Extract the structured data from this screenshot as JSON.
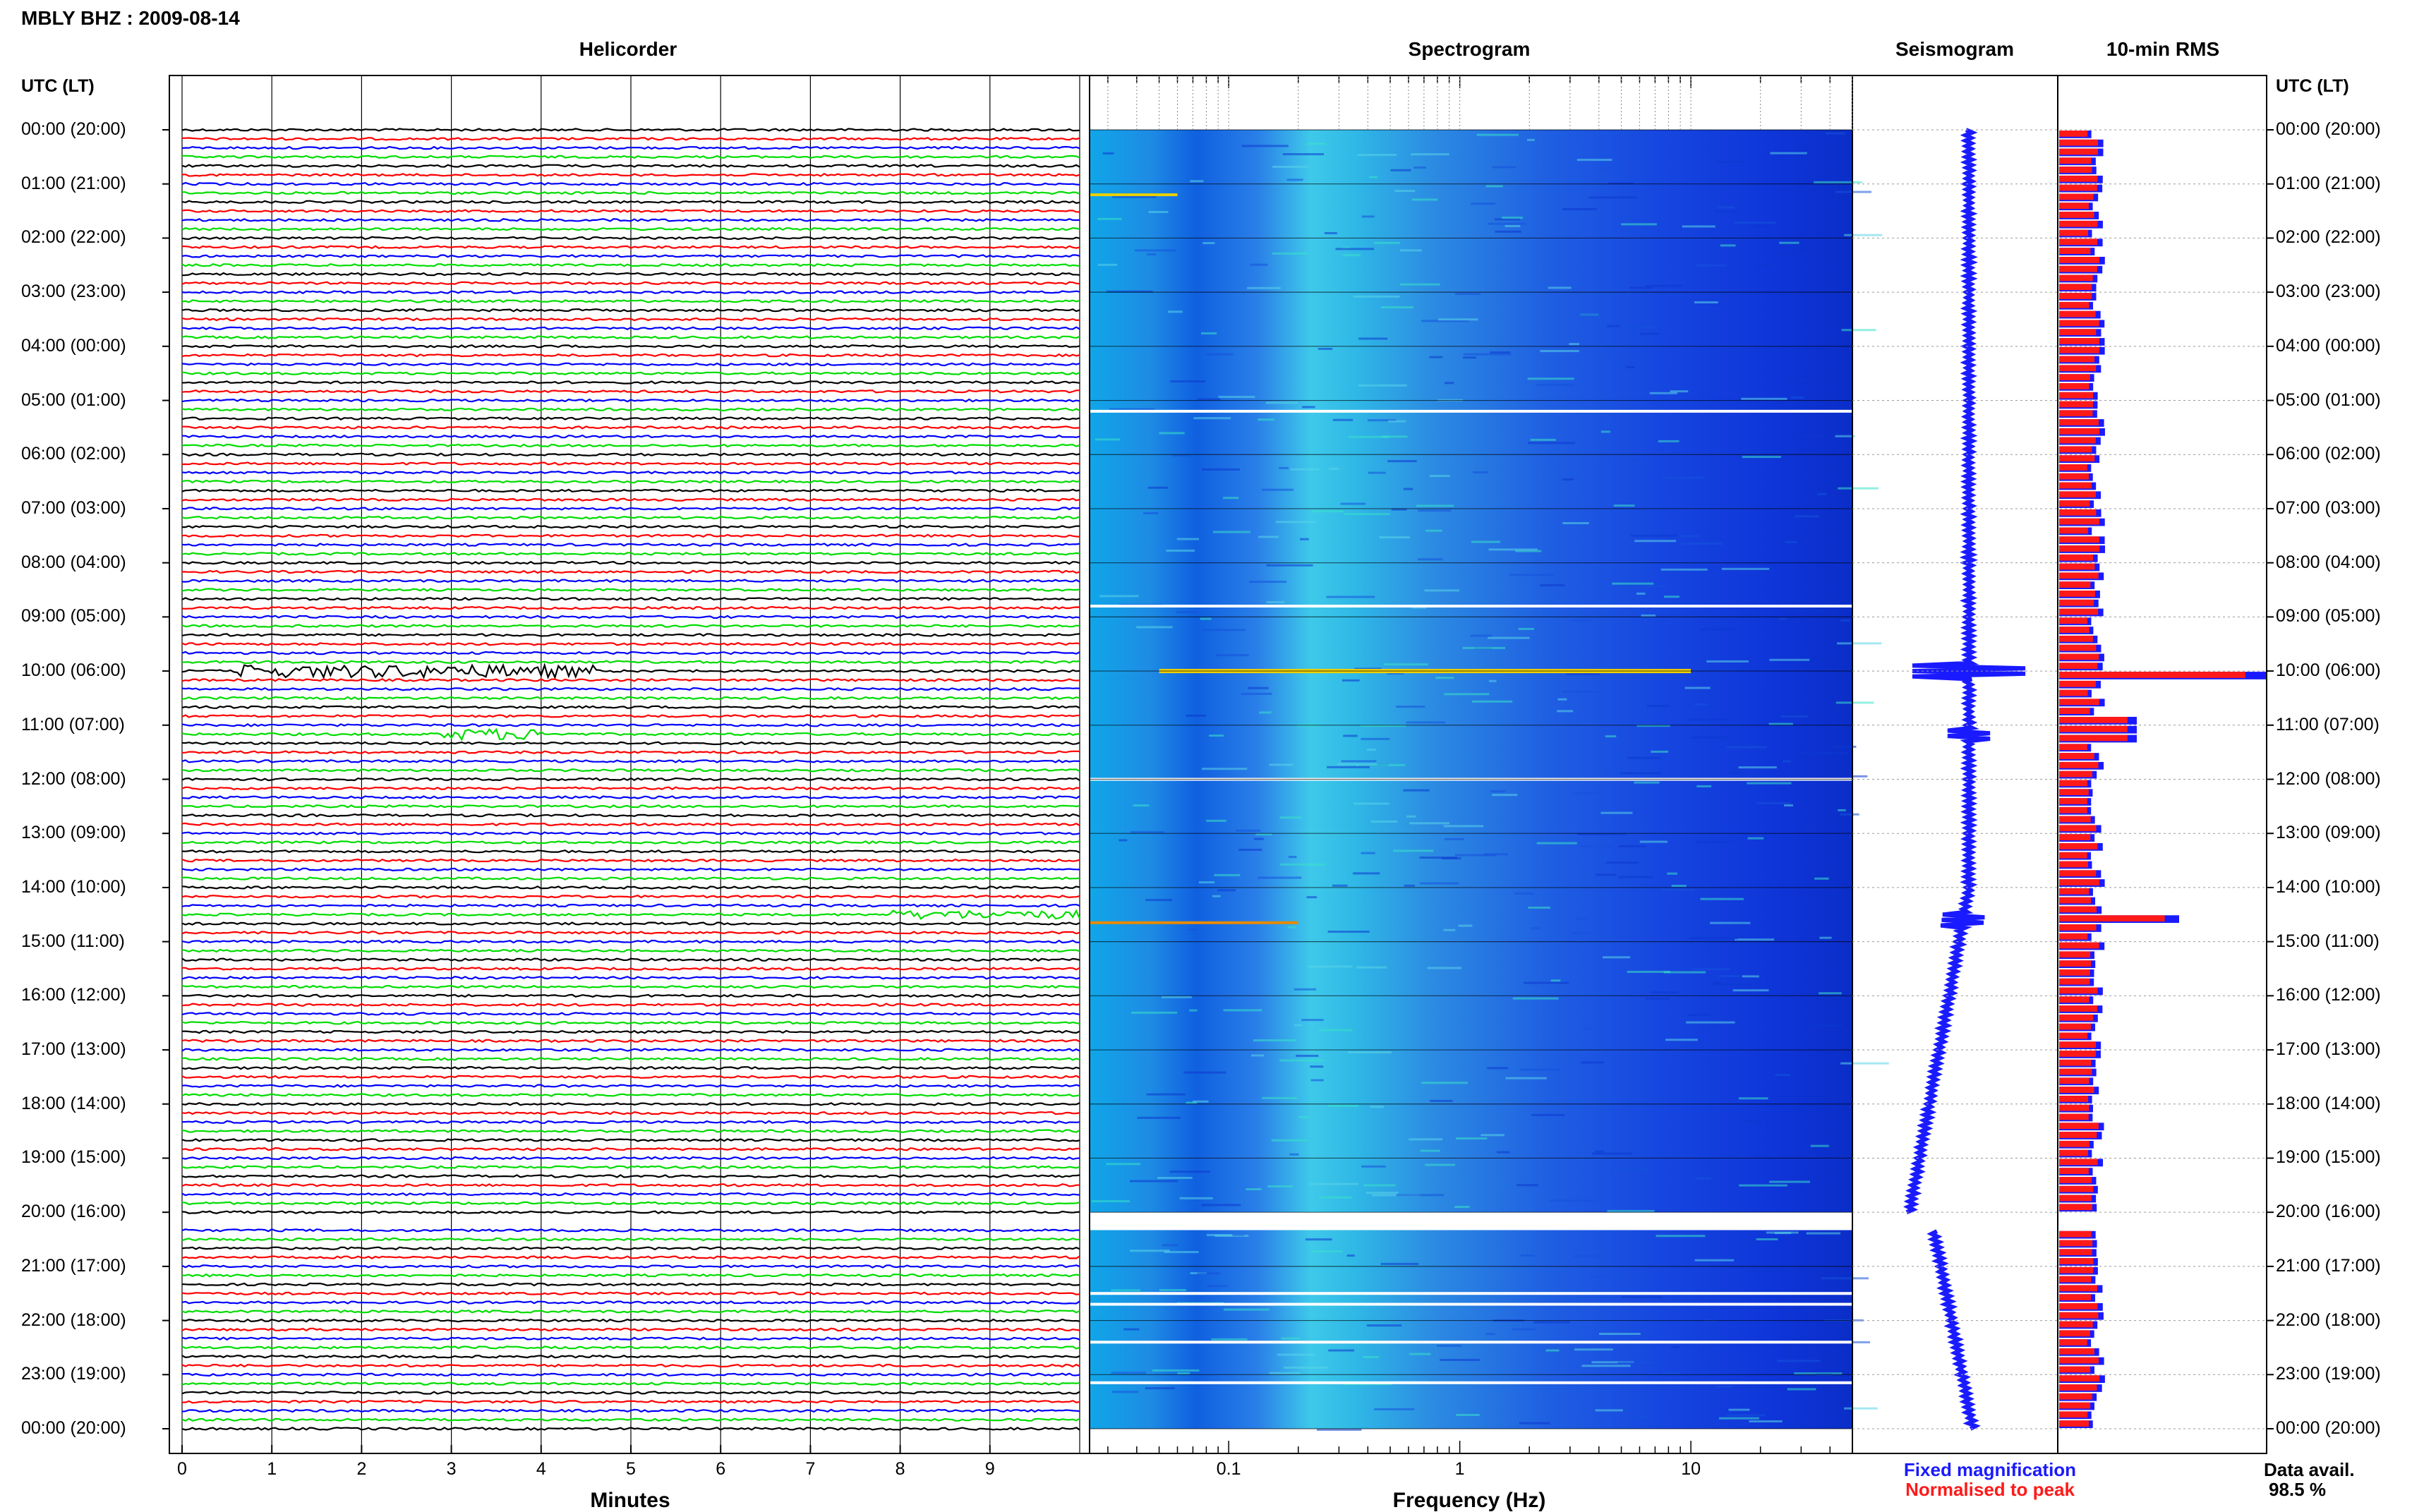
{
  "header": {
    "station_title": "MBLY BHZ : 2009-08-14"
  },
  "panels": {
    "helicorder": "Helicorder",
    "spectrogram": "Spectrogram",
    "seismogram": "Seismogram",
    "rms": "10-min RMS"
  },
  "axes": {
    "left_time_header": "UTC (LT)",
    "right_time_header": "UTC (LT)",
    "helicorder_xlabel": "Minutes",
    "spectrogram_xlabel": "Frequency (Hz)"
  },
  "legend": {
    "fixed": "Fixed magnification",
    "normalised": "Normalised to peak",
    "fixed_color": "#1a1aff",
    "normalised_color": "#ff1a1a"
  },
  "data_avail": {
    "label": "Data avail.",
    "value": "98.5 %"
  },
  "chart_data": {
    "type": "heatmap",
    "time_labels": [
      "00:00 (20:00)",
      "01:00 (21:00)",
      "02:00 (22:00)",
      "03:00 (23:00)",
      "04:00 (00:00)",
      "05:00 (01:00)",
      "06:00 (02:00)",
      "07:00 (03:00)",
      "08:00 (04:00)",
      "09:00 (05:00)",
      "10:00 (06:00)",
      "11:00 (07:00)",
      "12:00 (08:00)",
      "13:00 (09:00)",
      "14:00 (10:00)",
      "15:00 (11:00)",
      "16:00 (12:00)",
      "17:00 (13:00)",
      "18:00 (14:00)",
      "19:00 (15:00)",
      "20:00 (16:00)",
      "21:00 (17:00)",
      "22:00 (18:00)",
      "23:00 (19:00)",
      "00:00 (20:00)"
    ],
    "helicorder": {
      "minute_ticks": [
        "0",
        "1",
        "2",
        "3",
        "4",
        "5",
        "6",
        "7",
        "8",
        "9"
      ],
      "xlim": [
        0,
        10
      ],
      "trace_colors": [
        "#000000",
        "#ff0000",
        "#0000ff",
        "#00dd00"
      ],
      "gap_hours": [
        20.0,
        20.33
      ]
    },
    "spectrogram": {
      "xscale": "log",
      "xlim": [
        0.025,
        50
      ],
      "major_tick_labels": [
        "0.1",
        "1",
        "10"
      ],
      "gap_hours": [
        20.0,
        20.33
      ]
    },
    "rms": {
      "peak_hours": [
        10.0,
        11.0,
        14.5
      ],
      "gap_hours": [
        20.0,
        20.33
      ]
    }
  }
}
